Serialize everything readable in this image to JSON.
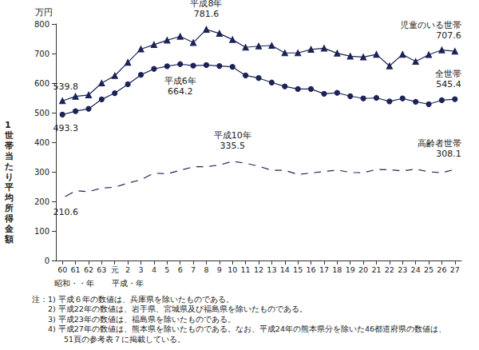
{
  "chart_data": {
    "type": "line",
    "ylabel": "1世帯当たり平均所得金額",
    "yunit": "万円",
    "x_group_labels": [
      "昭和・・年",
      "平成・年"
    ],
    "categories": [
      "60",
      "61",
      "62",
      "63",
      "元",
      "2",
      "3",
      "4",
      "5",
      "6",
      "7",
      "8",
      "9",
      "10",
      "11",
      "12",
      "13",
      "14",
      "15",
      "16",
      "17",
      "18",
      "19",
      "20",
      "21",
      "22",
      "23",
      "24",
      "25",
      "26",
      "27"
    ],
    "ylim": [
      0,
      800
    ],
    "yticks": [
      0,
      100,
      200,
      300,
      400,
      500,
      600,
      700,
      800
    ],
    "grid": false,
    "series": [
      {
        "name": "児童のいる世帯",
        "color": "#1c2457",
        "marker": "triangle",
        "values": [
          539.8,
          555,
          560,
          600,
          625,
          670,
          715,
          730,
          745,
          758,
          737,
          781.6,
          768,
          747,
          721,
          725,
          727,
          702,
          702,
          714,
          718,
          701,
          691,
          688,
          697,
          658,
          697,
          673,
          696,
          712,
          707.6
        ]
      },
      {
        "name": "全世帯",
        "color": "#1c2457",
        "marker": "circle",
        "values": [
          493.3,
          505,
          513,
          545,
          566,
          596,
          628,
          648,
          657,
          664.2,
          659,
          661,
          658,
          655,
          626,
          617,
          602,
          589,
          580,
          580,
          564,
          567,
          556,
          548,
          550,
          538,
          548,
          537,
          529,
          542,
          545.4
        ]
      },
      {
        "name": "高齢者世帯",
        "color": "#1c2457",
        "marker": "circle_open",
        "values": [
          210.6,
          236,
          233,
          245,
          248,
          262,
          273,
          296,
          293,
          305,
          317,
          317,
          323,
          335.5,
          329,
          319,
          305,
          305,
          291,
          296,
          301,
          306,
          298,
          297,
          308,
          307,
          303,
          309,
          300,
          297,
          308.1
        ]
      }
    ],
    "annotations": [
      {
        "series": "児童のいる世帯",
        "category": "60",
        "text": "539.8"
      },
      {
        "series": "全世帯",
        "category": "60",
        "text": "493.3"
      },
      {
        "series": "高齢者世帯",
        "category": "60",
        "text": "210.6"
      },
      {
        "series": "児童のいる世帯",
        "category": "8",
        "label": "平成8年",
        "text": "781.6"
      },
      {
        "series": "全世帯",
        "category": "6",
        "label": "平成6年",
        "text": "664.2"
      },
      {
        "series": "高齢者世帯",
        "category": "10",
        "label": "平成10年",
        "text": "335.5"
      },
      {
        "series": "児童のいる世帯",
        "category": "27",
        "text": "707.6"
      },
      {
        "series": "全世帯",
        "category": "27",
        "text": "545.4"
      },
      {
        "series": "高齢者世帯",
        "category": "27",
        "text": "308.1"
      }
    ],
    "notes": [
      "注：1) 平成６年の数値は、兵庫県を除いたものである。",
      "2) 平成22年の数値は、岩手県、宮城県及び福島県を除いたものである。",
      "3) 平成23年の数値は、福島県を除いたものである。",
      "4) 平成27年の数値は、熊本県を除いたものである。なお、平成24年の熊本県分を除いた46都道府県の数値は、",
      "51頁の参考表７に掲載している。"
    ]
  }
}
